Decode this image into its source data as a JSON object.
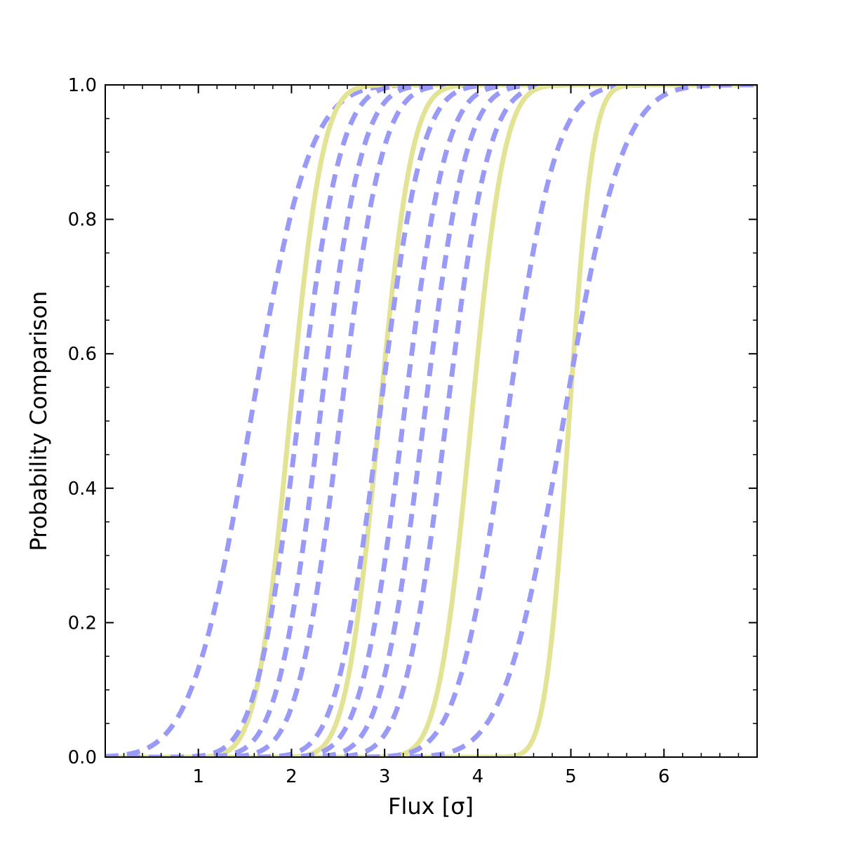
{
  "chart_data": {
    "type": "line",
    "xlabel": "Flux [σ]",
    "ylabel": "Probability Comparison",
    "xlim": [
      0,
      7
    ],
    "ylim": [
      0,
      1
    ],
    "xticks": [
      1,
      2,
      3,
      4,
      5,
      6
    ],
    "xtick_labels": [
      "1",
      "2",
      "3",
      "4",
      "5",
      "6"
    ],
    "xminor_step": 0.2,
    "yticks": [
      0,
      0.2,
      0.4,
      0.6,
      0.8,
      1.0
    ],
    "ytick_labels": [
      "0.0",
      "0.2",
      "0.4",
      "0.6",
      "0.8",
      "1.0"
    ],
    "yminor_step": 0.05,
    "grid": false,
    "legend": false,
    "colors": {
      "solid": "#e3e396",
      "dashed": "#9999f7",
      "frame": "#000000"
    },
    "series": [
      {
        "style": "dashed",
        "mu": 1.56,
        "sigma": 0.5
      },
      {
        "style": "solid",
        "mu": 1.98,
        "sigma": 0.28
      },
      {
        "style": "dashed",
        "mu": 2.07,
        "sigma": 0.36
      },
      {
        "style": "dashed",
        "mu": 2.3,
        "sigma": 0.36
      },
      {
        "style": "dashed",
        "mu": 2.52,
        "sigma": 0.36
      },
      {
        "style": "solid",
        "mu": 2.94,
        "sigma": 0.28
      },
      {
        "style": "dashed",
        "mu": 2.94,
        "sigma": 0.36
      },
      {
        "style": "dashed",
        "mu": 3.2,
        "sigma": 0.36
      },
      {
        "style": "dashed",
        "mu": 3.42,
        "sigma": 0.36
      },
      {
        "style": "dashed",
        "mu": 3.66,
        "sigma": 0.36
      },
      {
        "style": "solid",
        "mu": 3.93,
        "sigma": 0.28
      },
      {
        "style": "dashed",
        "mu": 4.31,
        "sigma": 0.42
      },
      {
        "style": "solid",
        "mu": 4.98,
        "sigma": 0.2
      },
      {
        "style": "dashed",
        "mu": 4.92,
        "sigma": 0.5
      }
    ]
  }
}
